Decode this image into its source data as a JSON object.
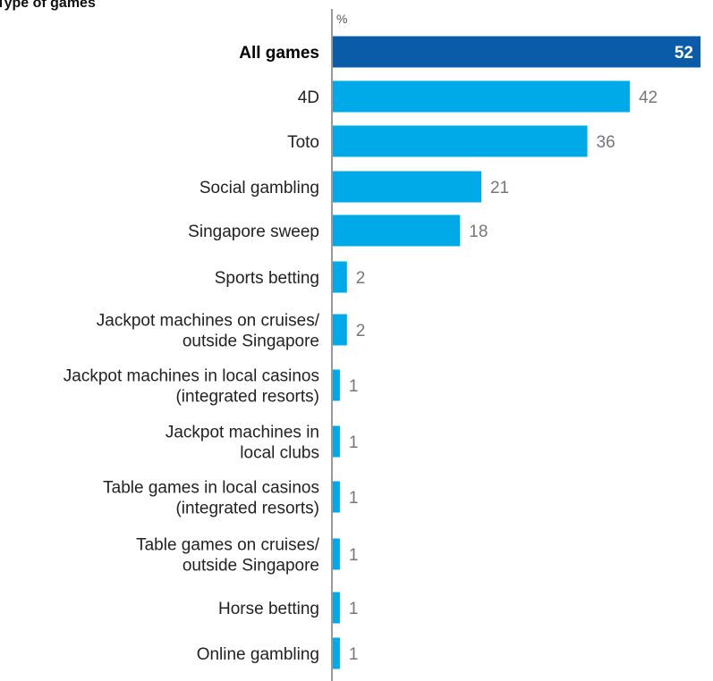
{
  "chart_data": {
    "type": "bar",
    "orientation": "horizontal",
    "title": "Type of games",
    "unit_label": "%",
    "categories": [
      [
        "All games"
      ],
      [
        "4D"
      ],
      [
        "Toto"
      ],
      [
        "Social gambling"
      ],
      [
        "Singapore sweep"
      ],
      [
        "Sports betting"
      ],
      [
        "Jackpot machines on cruises/",
        "outside Singapore"
      ],
      [
        "Jackpot machines in local casinos",
        "(integrated resorts)"
      ],
      [
        "Jackpot machines in",
        "local clubs"
      ],
      [
        "Table games in local casinos",
        "(integrated resorts)"
      ],
      [
        "Table games on cruises/",
        "outside Singapore"
      ],
      [
        "Horse betting"
      ],
      [
        "Online gambling"
      ]
    ],
    "values": [
      52,
      42,
      36,
      21,
      18,
      2,
      2,
      1,
      1,
      1,
      1,
      1,
      1
    ],
    "highlight_index": 0,
    "xlim": [
      0,
      52
    ],
    "grid": false,
    "colors": {
      "highlight": "#0A5CA8",
      "bar": "#00A9E8",
      "axis": "#999999"
    }
  }
}
